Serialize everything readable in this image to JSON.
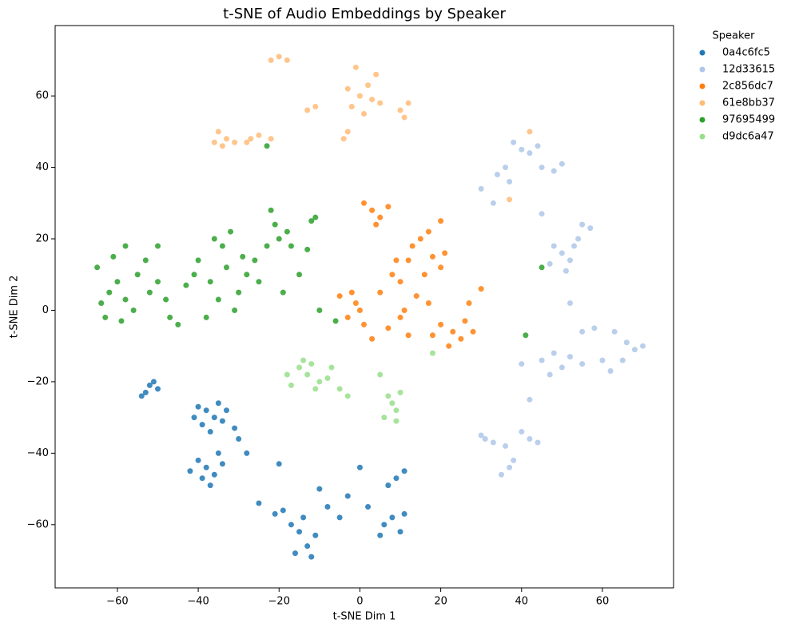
{
  "chart_data": {
    "type": "scatter",
    "title": "t-SNE of Audio Embeddings by Speaker",
    "x_label": "t-SNE Dim 1",
    "y_label": "t-SNE Dim 2",
    "legend_title": "Speaker",
    "legend": "outside upper right",
    "xlim": [
      -75.4,
      77.6
    ],
    "ylim": [
      -77.7,
      79.7
    ],
    "xticks": [
      {
        "value": -60,
        "label": "−60"
      },
      {
        "value": -40,
        "label": "−40"
      },
      {
        "value": -20,
        "label": "−20"
      },
      0,
      20,
      40,
      60
    ],
    "yticks": [
      {
        "value": -60,
        "label": "−60"
      },
      {
        "value": -40,
        "label": "−40"
      },
      {
        "value": -20,
        "label": "−20"
      },
      0,
      20,
      40,
      60
    ],
    "series": [
      {
        "name": "0a4c6fc5",
        "color": "#1f77b4",
        "x": [
          -52,
          -53,
          -51,
          -50,
          -54,
          -38,
          -36,
          -40,
          -34,
          -39,
          -35,
          -41,
          -37,
          -33,
          -38,
          -36,
          -40,
          -34,
          -39,
          -42,
          -35,
          -37,
          -30,
          -28,
          -31,
          -15,
          -13,
          -17,
          -12,
          -14,
          -11,
          -19,
          -21,
          -16,
          -8,
          -5,
          -3,
          0,
          2,
          6,
          8,
          10,
          5,
          11,
          9,
          11,
          7,
          -10,
          -20,
          -25
        ],
        "values": [
          -21,
          -23,
          -20,
          -22,
          -24,
          -28,
          -30,
          -27,
          -31,
          -32,
          -26,
          -30,
          -34,
          -28,
          -44,
          -46,
          -42,
          -43,
          -47,
          -45,
          -40,
          -49,
          -36,
          -40,
          -33,
          -62,
          -66,
          -60,
          -69,
          -58,
          -63,
          -56,
          -57,
          -68,
          -55,
          -58,
          -52,
          -44,
          -55,
          -60,
          -58,
          -62,
          -63,
          -57,
          -47,
          -45,
          -49,
          -50,
          -43,
          -54
        ]
      },
      {
        "name": "12d33615",
        "color": "#aec7e8",
        "x": [
          40,
          38,
          42,
          36,
          34,
          37,
          45,
          48,
          50,
          44,
          30,
          33,
          45,
          50,
          52,
          48,
          54,
          55,
          57,
          51,
          53,
          47,
          55,
          58,
          63,
          66,
          68,
          65,
          60,
          55,
          50,
          45,
          40,
          48,
          62,
          70,
          33,
          31,
          36,
          40,
          42,
          44,
          37,
          35,
          38,
          42,
          52,
          30,
          47,
          52
        ],
        "values": [
          45,
          47,
          44,
          40,
          38,
          36,
          40,
          39,
          41,
          46,
          34,
          30,
          27,
          16,
          14,
          18,
          20,
          24,
          23,
          11,
          18,
          13,
          -6,
          -5,
          -6,
          -9,
          -11,
          -14,
          -14,
          -15,
          -16,
          -14,
          -15,
          -12,
          -17,
          -10,
          -37,
          -36,
          -38,
          -34,
          -36,
          -37,
          -44,
          -46,
          -42,
          -25,
          2,
          -35,
          -18,
          -13
        ]
      },
      {
        "name": "2c856dc7",
        "color": "#ff7f0e",
        "x": [
          3,
          5,
          1,
          4,
          7,
          15,
          17,
          13,
          18,
          20,
          16,
          10,
          8,
          5,
          12,
          -1,
          -3,
          0,
          -2,
          1,
          23,
          25,
          20,
          28,
          22,
          26,
          18,
          12,
          7,
          9,
          11,
          30,
          -5,
          27,
          20,
          14,
          3,
          17,
          21,
          10
        ],
        "values": [
          28,
          26,
          30,
          24,
          29,
          20,
          22,
          18,
          15,
          12,
          10,
          8,
          10,
          5,
          14,
          2,
          -2,
          0,
          5,
          -4,
          -6,
          -8,
          -4,
          -6,
          -10,
          -3,
          -7,
          -7,
          -5,
          14,
          0,
          6,
          4,
          2,
          25,
          4,
          -8,
          2,
          16,
          -2
        ]
      },
      {
        "name": "61e8bb37",
        "color": "#ffbb78",
        "x": [
          -33,
          -35,
          -31,
          -34,
          -27,
          -25,
          -22,
          -22,
          -20,
          -18,
          0,
          2,
          -2,
          4,
          1,
          -1,
          3,
          -3,
          5,
          -3,
          -4,
          10,
          12,
          11,
          -11,
          -13,
          -36,
          42,
          37,
          -28
        ],
        "values": [
          48,
          50,
          47,
          46,
          48,
          49,
          48,
          70,
          71,
          70,
          60,
          63,
          57,
          66,
          55,
          68,
          59,
          62,
          58,
          50,
          48,
          56,
          58,
          54,
          57,
          56,
          47,
          50,
          31,
          47
        ]
      },
      {
        "name": "97695499",
        "color": "#2ca02c",
        "x": [
          -62,
          -64,
          -60,
          -63,
          -58,
          -61,
          -58,
          -55,
          -53,
          -52,
          -56,
          -59,
          -50,
          -48,
          -45,
          -43,
          -41,
          -38,
          -36,
          -34,
          -32,
          -33,
          -30,
          -35,
          -28,
          -26,
          -25,
          -23,
          -20,
          -18,
          -17,
          -21,
          -12,
          -13,
          -15,
          -22,
          -23,
          -65,
          -50,
          -40,
          -29,
          -31,
          -37,
          -47,
          -11,
          -19,
          -10,
          -6,
          45,
          41
        ],
        "values": [
          5,
          2,
          8,
          -2,
          3,
          15,
          18,
          10,
          14,
          5,
          0,
          -3,
          8,
          3,
          -4,
          7,
          10,
          -2,
          20,
          18,
          22,
          12,
          5,
          3,
          10,
          14,
          8,
          18,
          20,
          22,
          18,
          24,
          25,
          17,
          10,
          28,
          46,
          12,
          18,
          14,
          15,
          0,
          8,
          -2,
          26,
          5,
          0,
          -3,
          12,
          -7
        ]
      },
      {
        "name": "d9dc6a47",
        "color": "#98df8a",
        "x": [
          -13,
          -15,
          -10,
          -17,
          -8,
          -12,
          -5,
          -18,
          -11,
          -14,
          8,
          9,
          7,
          10,
          6,
          9,
          5,
          -3,
          18,
          -7
        ],
        "values": [
          -18,
          -16,
          -20,
          -21,
          -19,
          -15,
          -22,
          -18,
          -22,
          -14,
          -26,
          -28,
          -24,
          -23,
          -30,
          -31,
          -18,
          -24,
          -12,
          -16
        ]
      }
    ]
  }
}
